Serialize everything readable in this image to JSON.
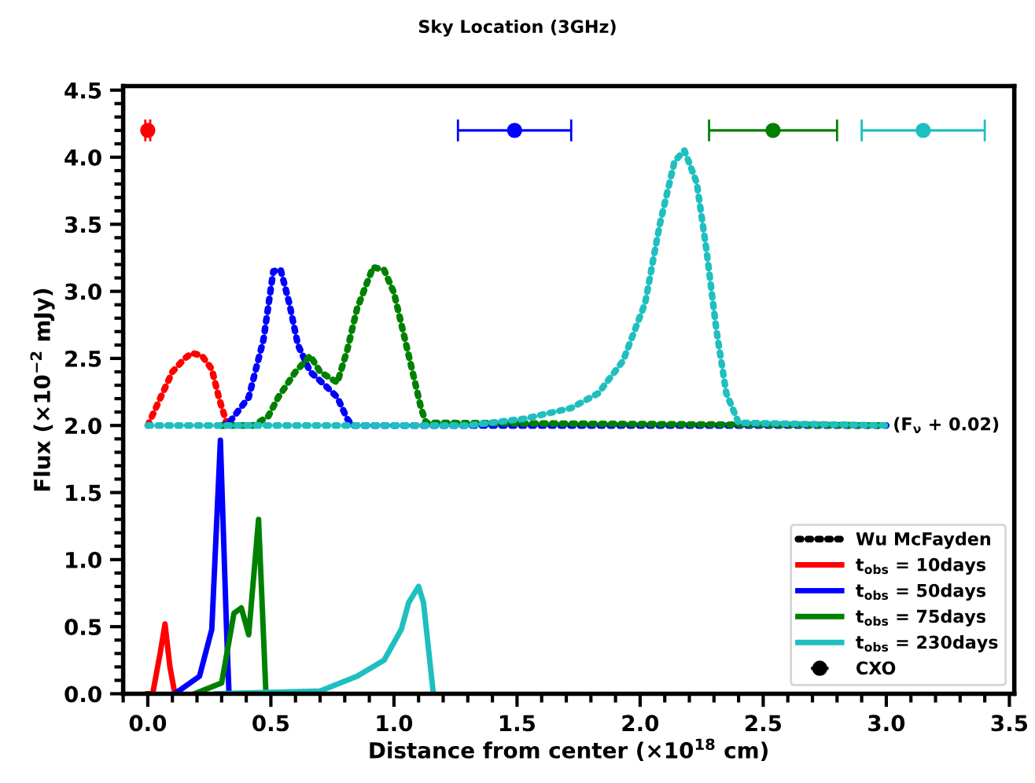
{
  "chart_data": {
    "type": "line",
    "title": "Sky Location (3GHz)",
    "xlabel": "Distance from center (×10$^{18}$ cm)",
    "ylabel": "Flux (×10$^{−2}$ mJy)",
    "xlim": [
      -0.1,
      3.52
    ],
    "ylim": [
      0,
      4.53
    ],
    "xticks": [
      {
        "value": 0,
        "label": "0.0"
      },
      0.5,
      {
        "value": 1,
        "label": "1.0"
      },
      1.5,
      {
        "value": 2,
        "label": "2.0"
      },
      2.5,
      {
        "value": 3,
        "label": "3.0"
      },
      3.5
    ],
    "yticks": [
      {
        "value": 0,
        "label": "0.0"
      },
      0.5,
      {
        "value": 1,
        "label": "1.0"
      },
      1.5,
      {
        "value": 2,
        "label": "2.0"
      },
      2.5,
      {
        "value": 3,
        "label": "3.0"
      },
      3.5,
      {
        "value": 4,
        "label": "4.0"
      },
      4.5
    ],
    "grid": false,
    "legend": "bottom right",
    "annotations": [
      {
        "text": "(F$_{ν}$ + 0.02)",
        "x": 3.0,
        "y": 2.0
      }
    ],
    "series": [
      {
        "name": "Wu McFayden",
        "color": "#000000",
        "line_style": "dotted"
      },
      {
        "name": "t$_{obs}$ = 10days",
        "color": "#ff0000",
        "line_style": "solid",
        "x": [
          0.0,
          0.02,
          0.05,
          0.07,
          0.09,
          0.11
        ],
        "values": [
          0,
          0,
          0.3,
          0.52,
          0.2,
          0
        ]
      },
      {
        "name": "t$_{obs}$ = 50days",
        "color": "#0000ff",
        "line_style": "solid",
        "x": [
          0.11,
          0.21,
          0.26,
          0.295,
          0.32,
          0.33
        ],
        "values": [
          0,
          0.13,
          0.48,
          1.89,
          0.48,
          0
        ]
      },
      {
        "name": "t$_{obs}$ = 75days",
        "color": "#008000",
        "line_style": "solid",
        "x": [
          0.19,
          0.3,
          0.35,
          0.38,
          0.41,
          0.45,
          0.48
        ],
        "values": [
          0,
          0.08,
          0.6,
          0.64,
          0.44,
          1.3,
          0
        ]
      },
      {
        "name": "t$_{obs}$ = 230days",
        "color": "#1fbfbf",
        "line_style": "solid",
        "x": [
          0.28,
          0.7,
          0.85,
          0.96,
          1.03,
          1.06,
          1.1,
          1.12,
          1.16
        ],
        "values": [
          0,
          0.02,
          0.13,
          0.25,
          0.48,
          0.68,
          0.8,
          0.68,
          0
        ]
      },
      {
        "color": "#ff0000",
        "line_style": "dotted",
        "x": [
          0.0,
          0.05,
          0.1,
          0.15,
          0.18,
          0.22,
          0.26,
          0.29,
          0.32,
          0.35
        ],
        "values": [
          2.0,
          2.2,
          2.4,
          2.5,
          2.54,
          2.52,
          2.42,
          2.2,
          2.02,
          2.0
        ]
      },
      {
        "color": "#0000ff",
        "line_style": "dotted",
        "x": [
          0.3,
          0.33,
          0.41,
          0.47,
          0.51,
          0.54,
          0.575,
          0.61,
          0.66,
          0.72,
          0.77,
          0.81,
          0.83,
          3.0
        ],
        "values": [
          2.0,
          2.02,
          2.21,
          2.64,
          3.15,
          3.16,
          2.91,
          2.6,
          2.4,
          2.3,
          2.21,
          2.05,
          2.0,
          2.0
        ]
      },
      {
        "color": "#008000",
        "line_style": "dotted",
        "x": [
          0.3,
          0.43,
          0.49,
          0.53,
          0.6,
          0.66,
          0.7,
          0.77,
          0.81,
          0.85,
          0.915,
          0.96,
          1.0,
          1.05,
          1.11,
          1.13,
          2.97
        ],
        "values": [
          2.0,
          2.0,
          2.07,
          2.21,
          2.4,
          2.52,
          2.4,
          2.32,
          2.56,
          2.87,
          3.18,
          3.16,
          2.99,
          2.6,
          2.13,
          2.02,
          2.0
        ]
      },
      {
        "color": "#1fbfbf",
        "line_style": "dotted",
        "x": [
          0.0,
          1.3,
          1.53,
          1.72,
          1.83,
          1.93,
          2.02,
          2.08,
          2.14,
          2.18,
          2.23,
          2.27,
          2.31,
          2.35,
          2.4,
          3.0
        ],
        "values": [
          2.0,
          2.0,
          2.05,
          2.13,
          2.24,
          2.48,
          2.91,
          3.5,
          3.97,
          4.05,
          3.81,
          3.3,
          2.71,
          2.24,
          2.02,
          2.0
        ]
      },
      {
        "type": "scatter",
        "name": "CXO",
        "color": "#000000",
        "marker": "circle"
      },
      {
        "type": "scatter",
        "marker": "circle",
        "color": "#ff0000",
        "x": [
          0.0
        ],
        "values": [
          4.2
        ],
        "xerrors": [
          0.01
        ]
      },
      {
        "type": "scatter",
        "marker": "circle",
        "color": "#0000ff",
        "x": [
          1.49
        ],
        "values": [
          4.2
        ],
        "xerrors": [
          [
            1.26,
            1.72
          ]
        ]
      },
      {
        "type": "scatter",
        "marker": "circle",
        "color": "#008000",
        "x": [
          2.54
        ],
        "values": [
          4.2
        ],
        "xerrors": [
          [
            2.28,
            2.8
          ]
        ]
      },
      {
        "type": "scatter",
        "marker": "circle",
        "color": "#1fbfbf",
        "x": [
          3.15
        ],
        "values": [
          4.2
        ],
        "xerrors": [
          [
            2.9,
            3.4
          ]
        ]
      }
    ]
  }
}
